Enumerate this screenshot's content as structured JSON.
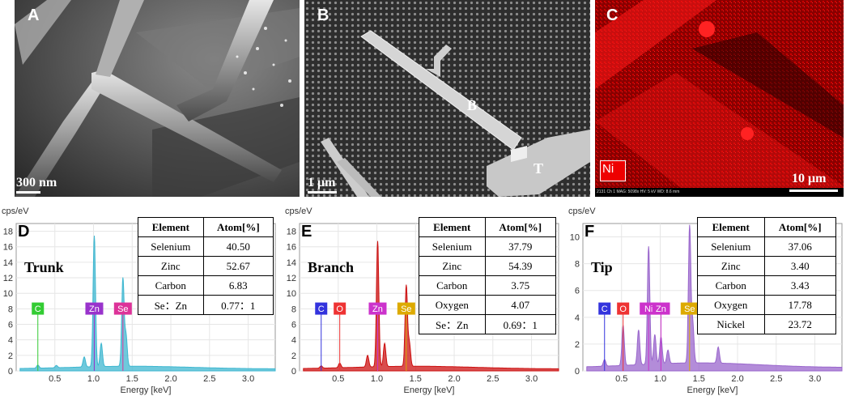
{
  "panels": {
    "A": {
      "label": "A",
      "scale": "300 nm"
    },
    "B": {
      "label": "B",
      "scale": "1 μm",
      "marker_b": "B",
      "marker_t": "T"
    },
    "C": {
      "label": "C",
      "scale": "10 μm",
      "element_tag": "Ni",
      "info": "2131  Ch 1   MAG: 5098x   HV: 5 kV   WD: 8.6 mm"
    }
  },
  "spectra": [
    {
      "panel": "D",
      "title": "Trunk",
      "y_unit": "cps/eV",
      "x_label": "Energy [keV]",
      "color": "#3fb7d0",
      "peak_labels": [
        {
          "t": "C",
          "c": "#33cc33",
          "x": 0.28
        },
        {
          "t": "Zn",
          "c": "#9933cc",
          "x": 1.01
        },
        {
          "t": "Se",
          "c": "#dd3399",
          "x": 1.38
        }
      ],
      "table": {
        "headers": [
          "Element",
          "Atom[%]"
        ],
        "rows": [
          [
            "Selenium",
            "40.50"
          ],
          [
            "Zinc",
            "52.67"
          ],
          [
            "Carbon",
            "6.83"
          ],
          [
            "Se：Zn",
            "0.77：1"
          ]
        ]
      }
    },
    {
      "panel": "E",
      "title": "Branch",
      "y_unit": "cps/eV",
      "x_label": "Energy [keV]",
      "color": "#cc1111",
      "peak_labels": [
        {
          "t": "C",
          "c": "#3333dd",
          "x": 0.28
        },
        {
          "t": "O",
          "c": "#ee3333",
          "x": 0.52
        },
        {
          "t": "Zn",
          "c": "#cc33cc",
          "x": 1.01
        },
        {
          "t": "Se",
          "c": "#ddaa00",
          "x": 1.38
        }
      ],
      "table": {
        "headers": [
          "Element",
          "Atom[%]"
        ],
        "rows": [
          [
            "Selenium",
            "37.79"
          ],
          [
            "Zinc",
            "54.39"
          ],
          [
            "Carbon",
            "3.75"
          ],
          [
            "Oxygen",
            "4.07"
          ],
          [
            "Se：Zn",
            "0.69：1"
          ]
        ]
      }
    },
    {
      "panel": "F",
      "title": "Tip",
      "y_unit": "cps/eV",
      "x_label": "Energy [keV]",
      "color": "#9966cc",
      "peak_labels": [
        {
          "t": "C",
          "c": "#3333dd",
          "x": 0.28
        },
        {
          "t": "O",
          "c": "#ee3333",
          "x": 0.52
        },
        {
          "t": "Ni",
          "c": "#cc33cc",
          "x": 0.85
        },
        {
          "t": "Zn",
          "c": "#cc33cc",
          "x": 1.01
        },
        {
          "t": "Se",
          "c": "#ddaa00",
          "x": 1.38
        }
      ],
      "table": {
        "headers": [
          "Element",
          "Atom[%]"
        ],
        "rows": [
          [
            "Selenium",
            "37.06"
          ],
          [
            "Zinc",
            "3.40"
          ],
          [
            "Carbon",
            "3.43"
          ],
          [
            "Oxygen",
            "17.78"
          ],
          [
            "Nickel",
            "23.72"
          ]
        ]
      }
    }
  ],
  "chart_data": [
    {
      "type": "area",
      "panel": "D",
      "xlabel": "Energy [keV]",
      "ylabel": "cps/eV",
      "xlim": [
        0.0,
        3.35
      ],
      "ylim": [
        0,
        19
      ],
      "xticks": [
        "0.5",
        "1.0",
        "1.5",
        "2.0",
        "2.5",
        "3.0"
      ],
      "yticks": [
        "0",
        "2",
        "4",
        "6",
        "8",
        "10",
        "12",
        "14",
        "16",
        "18"
      ],
      "peaks": [
        {
          "x": 0.28,
          "y": 0.4
        },
        {
          "x": 0.52,
          "y": 0.3
        },
        {
          "x": 0.88,
          "y": 1.3
        },
        {
          "x": 1.01,
          "y": 16.9
        },
        {
          "x": 1.1,
          "y": 3.0
        },
        {
          "x": 1.38,
          "y": 11.3
        },
        {
          "x": 1.42,
          "y": 4.0
        }
      ]
    },
    {
      "type": "area",
      "panel": "E",
      "xlabel": "Energy [keV]",
      "ylabel": "cps/eV",
      "xlim": [
        0.0,
        3.35
      ],
      "ylim": [
        0,
        19
      ],
      "xticks": [
        "0.5",
        "1.0",
        "1.5",
        "2.0",
        "2.5",
        "3.0"
      ],
      "yticks": [
        "0",
        "2",
        "4",
        "6",
        "8",
        "10",
        "12",
        "14",
        "16",
        "18"
      ],
      "peaks": [
        {
          "x": 0.28,
          "y": 0.3
        },
        {
          "x": 0.52,
          "y": 0.6
        },
        {
          "x": 0.88,
          "y": 1.5
        },
        {
          "x": 1.01,
          "y": 16.2
        },
        {
          "x": 1.1,
          "y": 3.0
        },
        {
          "x": 1.38,
          "y": 10.4
        },
        {
          "x": 1.42,
          "y": 3.0
        }
      ]
    },
    {
      "type": "area",
      "panel": "F",
      "xlabel": "Energy [keV]",
      "ylabel": "cps/eV",
      "xlim": [
        0.0,
        3.35
      ],
      "ylim": [
        0,
        11
      ],
      "xticks": [
        "0.5",
        "1.0",
        "1.5",
        "2.0",
        "2.5",
        "3.0"
      ],
      "yticks": [
        "0",
        "2",
        "4",
        "6",
        "8",
        "10"
      ],
      "peaks": [
        {
          "x": 0.28,
          "y": 0.5
        },
        {
          "x": 0.52,
          "y": 3.0
        },
        {
          "x": 0.72,
          "y": 2.6
        },
        {
          "x": 0.85,
          "y": 8.8
        },
        {
          "x": 0.93,
          "y": 2.2
        },
        {
          "x": 1.01,
          "y": 2.0
        },
        {
          "x": 1.1,
          "y": 1.0
        },
        {
          "x": 1.38,
          "y": 10.2
        },
        {
          "x": 1.42,
          "y": 3.0
        },
        {
          "x": 1.75,
          "y": 1.2
        }
      ]
    }
  ]
}
